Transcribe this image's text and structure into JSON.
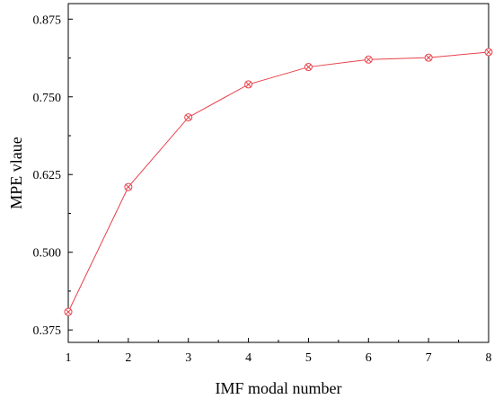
{
  "chart_data": {
    "type": "line",
    "title": "",
    "xlabel": "IMF modal number",
    "ylabel": "MPE vlaue",
    "x": [
      1,
      2,
      3,
      4,
      5,
      6,
      7,
      8
    ],
    "x_ticks": [
      "1",
      "2",
      "3",
      "4",
      "5",
      "6",
      "7",
      "8"
    ],
    "xlim": [
      1,
      8
    ],
    "ylim": [
      0.355,
      0.9
    ],
    "y_ticks": [
      "0.375",
      "0.500",
      "0.625",
      "0.750",
      "0.875"
    ],
    "grid": false,
    "series": [
      {
        "values": [
          0.404,
          0.605,
          0.717,
          0.77,
          0.798,
          0.81,
          0.813,
          0.822
        ],
        "color": "#e8414a",
        "marker": "circle-x"
      }
    ]
  }
}
